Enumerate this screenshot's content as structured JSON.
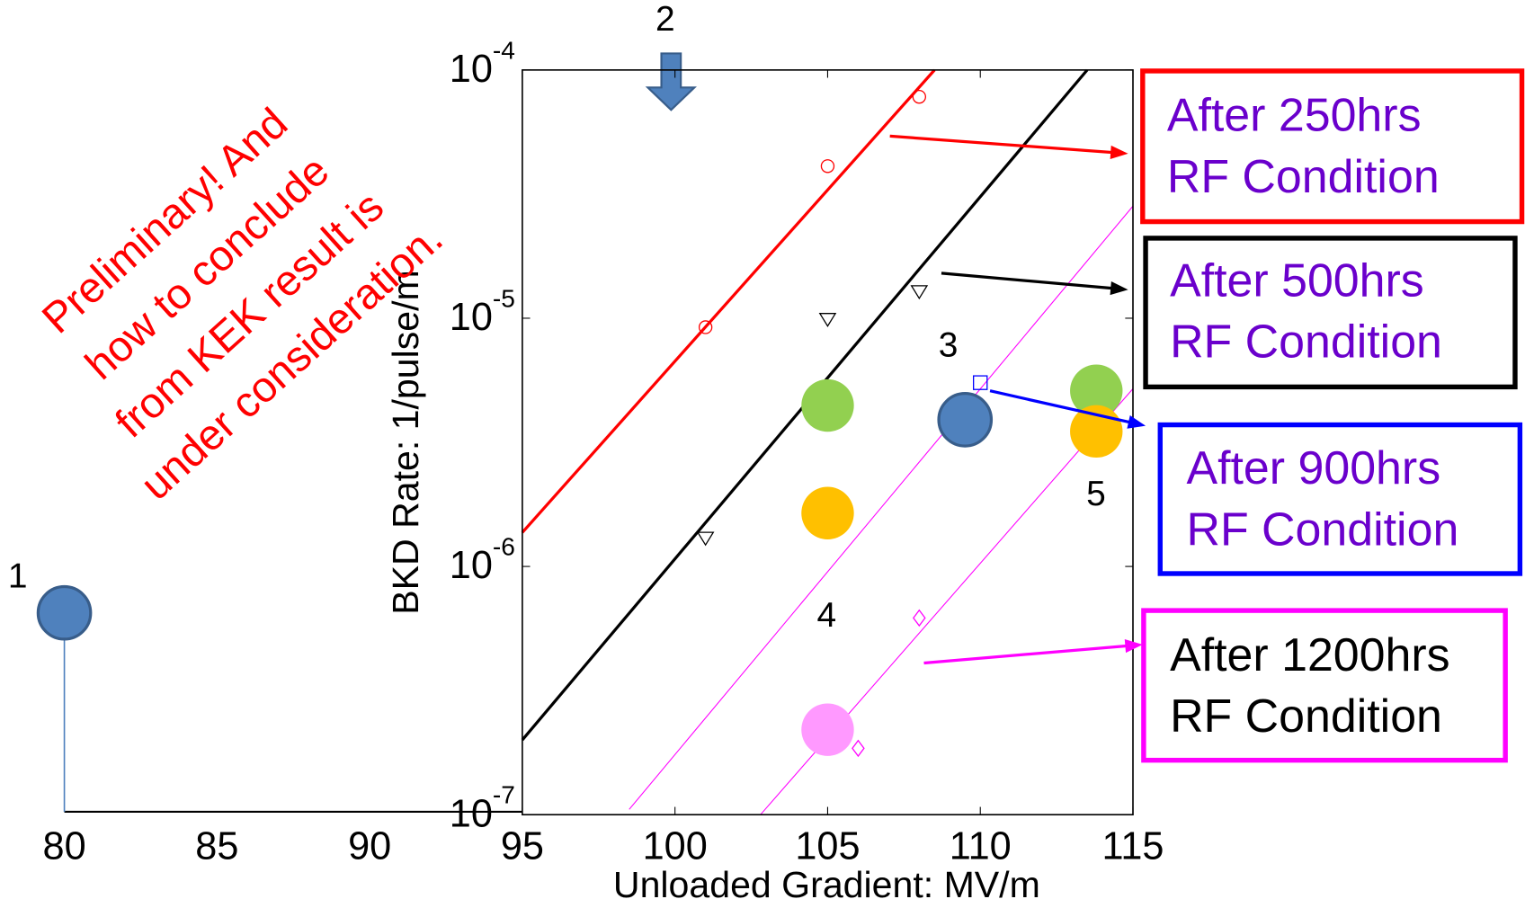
{
  "chart_data": {
    "type": "scatter",
    "x_label": "Unloaded Gradient: MV/m",
    "y_label": "BKD Rate: 1/pulse/m",
    "xlim": [
      80,
      115
    ],
    "xticks": [
      80,
      85,
      90,
      95,
      100,
      105,
      110,
      115
    ],
    "ylim": [
      1e-07,
      0.0001
    ],
    "log_y": true,
    "yticks": [
      {
        "value": 1e-07,
        "label": "10",
        "exponent": "-7"
      },
      {
        "value": 1e-06,
        "label": "10",
        "exponent": "-6"
      },
      {
        "value": 1e-05,
        "label": "10",
        "exponent": "-5"
      },
      {
        "value": 0.0001,
        "label": "10",
        "exponent": "-4"
      }
    ],
    "series": [
      {
        "marker": "big-circle",
        "color": "#4f81bd",
        "x": [
          80,
          109.5
        ],
        "values": [
          6.5e-07,
          3.9e-06
        ]
      },
      {
        "marker": "big-circle",
        "color": "#92d050",
        "x": [
          105,
          113.8
        ],
        "values": [
          4.45e-06,
          5.1e-06
        ]
      },
      {
        "marker": "big-circle",
        "color": "#ffc000",
        "x": [
          105,
          113.8
        ],
        "values": [
          1.64e-06,
          3.5e-06
        ]
      },
      {
        "marker": "big-circle",
        "color": "#ff99ff",
        "x": [
          105
        ],
        "values": [
          2.2e-07
        ]
      },
      {
        "marker": "circle",
        "color": "#ff0000",
        "x": [
          101,
          105,
          108
        ],
        "values": [
          9.2e-06,
          4.1e-05,
          7.8e-05
        ]
      },
      {
        "marker": "triangle",
        "color": "#000000",
        "x": [
          101,
          105,
          108
        ],
        "values": [
          1.3e-06,
          9.9e-06,
          1.28e-05
        ]
      },
      {
        "marker": "square",
        "color": "#0000ff",
        "x": [
          110
        ],
        "values": [
          5.5e-06
        ]
      },
      {
        "marker": "diamond",
        "color": "#ff00ff",
        "x": [
          108,
          106
        ],
        "values": [
          6.2e-07,
          1.85e-07
        ]
      }
    ],
    "fits": [
      {
        "color": "#ff0000",
        "width": 3,
        "x": [
          95,
          108.5
        ],
        "values": [
          1.37e-06,
          0.0001
        ]
      },
      {
        "color": "#000000",
        "width": 3,
        "x": [
          95,
          113.5
        ],
        "values": [
          2e-07,
          0.0001
        ]
      },
      {
        "color": "#ff00ff",
        "width": 1,
        "x": [
          98.5,
          115
        ],
        "values": [
          1.05e-07,
          2.83e-05
        ]
      },
      {
        "color": "#ff00ff",
        "width": 1,
        "x": [
          102.8,
          115
        ],
        "values": [
          1e-07,
          5.2e-06
        ]
      }
    ],
    "point_labels": [
      "1",
      "2",
      "3",
      "4",
      "5"
    ],
    "notes": [
      {
        "lines": [
          "After 250hrs",
          "RF Condition"
        ],
        "color": "#ff0000",
        "text_color": "#6a00cc"
      },
      {
        "lines": [
          "After 500hrs",
          "RF Condition"
        ],
        "color": "#000000",
        "text_color": "#6a00cc"
      },
      {
        "lines": [
          "After 900hrs",
          "RF Condition"
        ],
        "color": "#0000ff",
        "text_color": "#6a00cc"
      },
      {
        "lines": [
          "After 1200hrs",
          "RF Condition"
        ],
        "color": "#ff00ff",
        "text_color": "#000000"
      }
    ],
    "remark": {
      "lines": [
        "Preliminary!  And",
        "how to conclude",
        "from KEK result  is",
        "under consideration."
      ],
      "color": "#ff0000"
    }
  }
}
